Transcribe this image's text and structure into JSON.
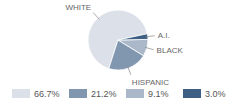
{
  "chart_data": {
    "type": "pie",
    "categories": [
      "WHITE",
      "HISPANIC",
      "BLACK",
      "A.I."
    ],
    "values": [
      66.7,
      21.2,
      9.1,
      3.0
    ],
    "value_labels": [
      "66.7%",
      "21.2%",
      "9.1%",
      "3.0%"
    ],
    "colors": [
      "#dce1e9",
      "#8197b0",
      "#abb8c9",
      "#3d5f84"
    ],
    "legend": "bottom"
  }
}
